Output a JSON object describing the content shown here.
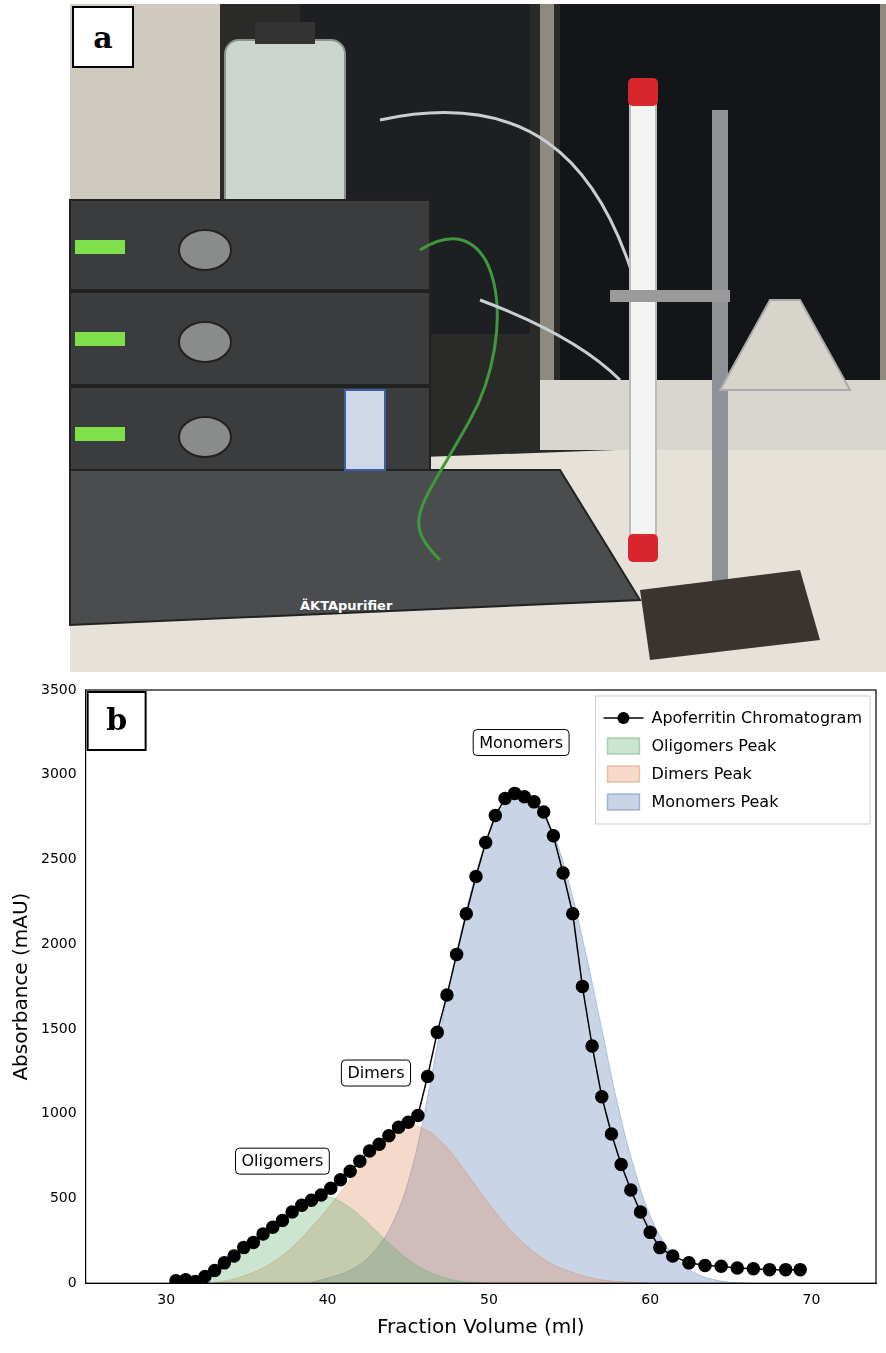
{
  "photo": {
    "panel": "a",
    "labels": [
      "ÄKTApurifier"
    ]
  },
  "chart_data": {
    "panel": "b",
    "type": "line",
    "x_label": "Fraction Volume (ml)",
    "y_label": "Absorbance (mAU)",
    "xlim": [
      25,
      74
    ],
    "xticks": [
      30,
      40,
      50,
      60,
      70
    ],
    "ylim": [
      0,
      3500
    ],
    "yticks": [
      0,
      500,
      1000,
      1500,
      2000,
      2500,
      3000,
      3500
    ],
    "grid": false,
    "legend": "upper right",
    "annotations": [
      {
        "text": "Oligomers",
        "x": 37.2,
        "y": 720
      },
      {
        "text": "Dimers",
        "x": 43.0,
        "y": 1240
      },
      {
        "text": "Monomers",
        "x": 52.0,
        "y": 3190
      }
    ],
    "series": [
      {
        "name": "Apoferritin Chromatogram",
        "type": "line",
        "color": "#000000",
        "marker": "circle",
        "line_style": "solid",
        "x": [
          30.6,
          31.2,
          31.8,
          32.4,
          33.0,
          33.6,
          34.2,
          34.8,
          35.4,
          36.0,
          36.6,
          37.2,
          37.8,
          38.4,
          39.0,
          39.6,
          40.2,
          40.8,
          41.4,
          42.0,
          42.6,
          43.2,
          43.8,
          44.4,
          45.0,
          45.6,
          46.2,
          46.8,
          47.4,
          48.0,
          48.6,
          49.2,
          49.8,
          50.4,
          51.0,
          51.6,
          52.2,
          52.8,
          53.4,
          54.0,
          54.6,
          55.2,
          55.8,
          56.4,
          57.0,
          57.6,
          58.2,
          58.8,
          59.4,
          60.0,
          60.6,
          61.4,
          62.4,
          63.4,
          64.4,
          65.4,
          66.4,
          67.4,
          68.4,
          69.3
        ],
        "values": [
          15,
          20,
          10,
          40,
          75,
          120,
          160,
          210,
          240,
          290,
          330,
          370,
          420,
          460,
          490,
          520,
          560,
          610,
          660,
          720,
          780,
          820,
          870,
          920,
          950,
          990,
          1220,
          1480,
          1700,
          1940,
          2180,
          2400,
          2600,
          2760,
          2860,
          2890,
          2870,
          2840,
          2780,
          2640,
          2420,
          2180,
          1750,
          1400,
          1100,
          880,
          700,
          550,
          420,
          300,
          210,
          160,
          120,
          105,
          100,
          90,
          85,
          80,
          80,
          80
        ]
      },
      {
        "name": "Oligomers Peak",
        "type": "area",
        "color": "#55a868",
        "x": [
          31,
          32,
          33,
          34,
          35,
          36,
          37,
          38,
          39,
          40,
          41,
          42,
          43,
          44,
          45,
          46,
          47,
          48,
          49,
          50
        ],
        "values": [
          5,
          20,
          60,
          120,
          200,
          290,
          380,
          450,
          500,
          510,
          470,
          400,
          310,
          220,
          140,
          80,
          40,
          15,
          5,
          0
        ]
      },
      {
        "name": "Dimers Peak",
        "type": "area",
        "color": "#dd8452",
        "x": [
          33,
          34,
          35,
          36,
          37,
          38,
          39,
          40,
          41,
          42,
          43,
          44,
          45,
          46,
          47,
          48,
          49,
          50,
          51,
          52,
          53,
          54,
          55,
          56,
          57,
          58,
          59,
          60
        ],
        "values": [
          5,
          20,
          50,
          90,
          150,
          230,
          330,
          440,
          560,
          680,
          800,
          890,
          930,
          910,
          840,
          730,
          600,
          470,
          350,
          250,
          170,
          110,
          70,
          40,
          20,
          10,
          5,
          0
        ]
      },
      {
        "name": "Monomers Peak",
        "type": "area",
        "color": "#4c72b0",
        "x": [
          39,
          40,
          41,
          42,
          43,
          44,
          45,
          46,
          47,
          48,
          49,
          50,
          51,
          52,
          53,
          54,
          55,
          56,
          57,
          58,
          59,
          60,
          61,
          62,
          63,
          64,
          65,
          66
        ],
        "values": [
          5,
          30,
          60,
          110,
          200,
          350,
          600,
          1000,
          1500,
          1950,
          2350,
          2650,
          2850,
          2880,
          2820,
          2650,
          2350,
          1950,
          1500,
          1050,
          680,
          400,
          220,
          110,
          50,
          20,
          5,
          0
        ]
      }
    ]
  }
}
